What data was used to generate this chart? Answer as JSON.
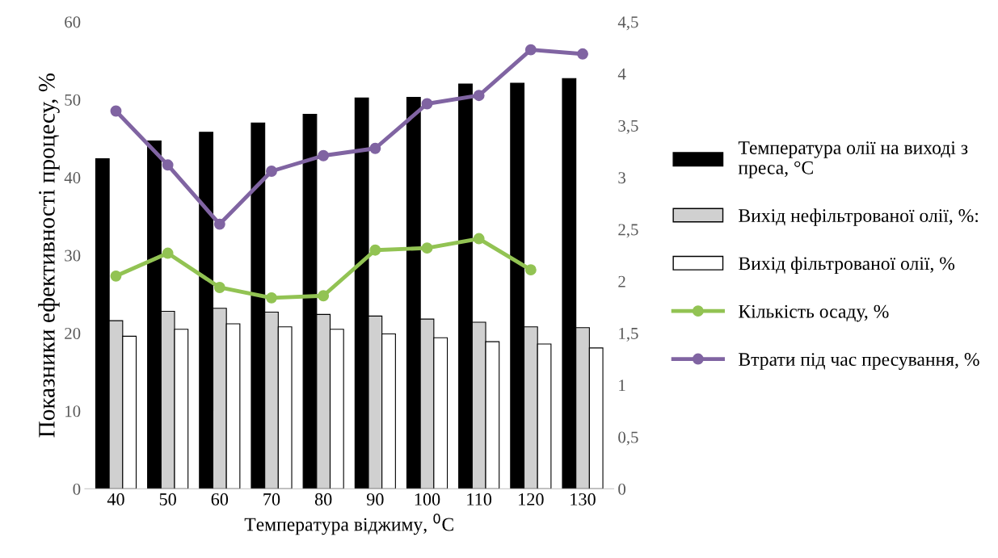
{
  "chart_data": {
    "type": "bar",
    "xlabel": "Температура віджиму, $^{0}$С",
    "ylabel": "Показники ефективності процесу, %",
    "categories": [
      "40",
      "50",
      "60",
      "70",
      "80",
      "90",
      "100",
      "110",
      "120",
      "130"
    ],
    "series": [
      {
        "name": "Температура олії на виході з\nпреса, °С",
        "color": "#000000",
        "values": [
          42.4,
          44.7,
          45.8,
          47.0,
          48.1,
          50.2,
          50.3,
          52.0,
          52.1,
          52.7
        ]
      },
      {
        "name": "Вихід нефільтрованої олії, %:",
        "color": "#d0d0d0",
        "values": [
          21.6,
          22.8,
          23.2,
          22.7,
          22.4,
          22.2,
          21.8,
          21.4,
          20.8,
          20.7
        ]
      },
      {
        "name": "Вихід фільтрованої олії, %",
        "color": "#ffffff",
        "values": [
          19.6,
          20.5,
          21.2,
          20.8,
          20.5,
          19.9,
          19.4,
          18.9,
          18.6,
          18.1
        ]
      },
      {
        "name": "Кількість осаду, %",
        "type": "line",
        "axis": "y2",
        "color": "#92c353",
        "values": [
          2.05,
          2.27,
          1.94,
          1.84,
          1.86,
          2.3,
          2.32,
          2.41,
          2.11,
          null
        ]
      },
      {
        "name": "Втрати під час пресування, %",
        "type": "line",
        "axis": "y2",
        "color": "#8064a2",
        "values": [
          3.64,
          3.12,
          2.55,
          3.06,
          3.21,
          3.28,
          3.71,
          3.79,
          4.23,
          4.19
        ]
      }
    ],
    "ylim": [
      0,
      60
    ],
    "yticks": [
      0,
      10,
      20,
      30,
      40,
      50,
      60
    ],
    "y2lim": [
      0,
      4.5
    ],
    "y2ticks": [
      0,
      {
        "value": 0.5,
        "label": "0,5"
      },
      1,
      {
        "value": 1.5,
        "label": "1,5"
      },
      2,
      {
        "value": 2.5,
        "label": "2,5"
      },
      3,
      {
        "value": 3.5,
        "label": "3,5"
      },
      4,
      {
        "value": 4.5,
        "label": "4,5"
      }
    ],
    "marker": "circle",
    "grid": false,
    "legend": "right"
  }
}
